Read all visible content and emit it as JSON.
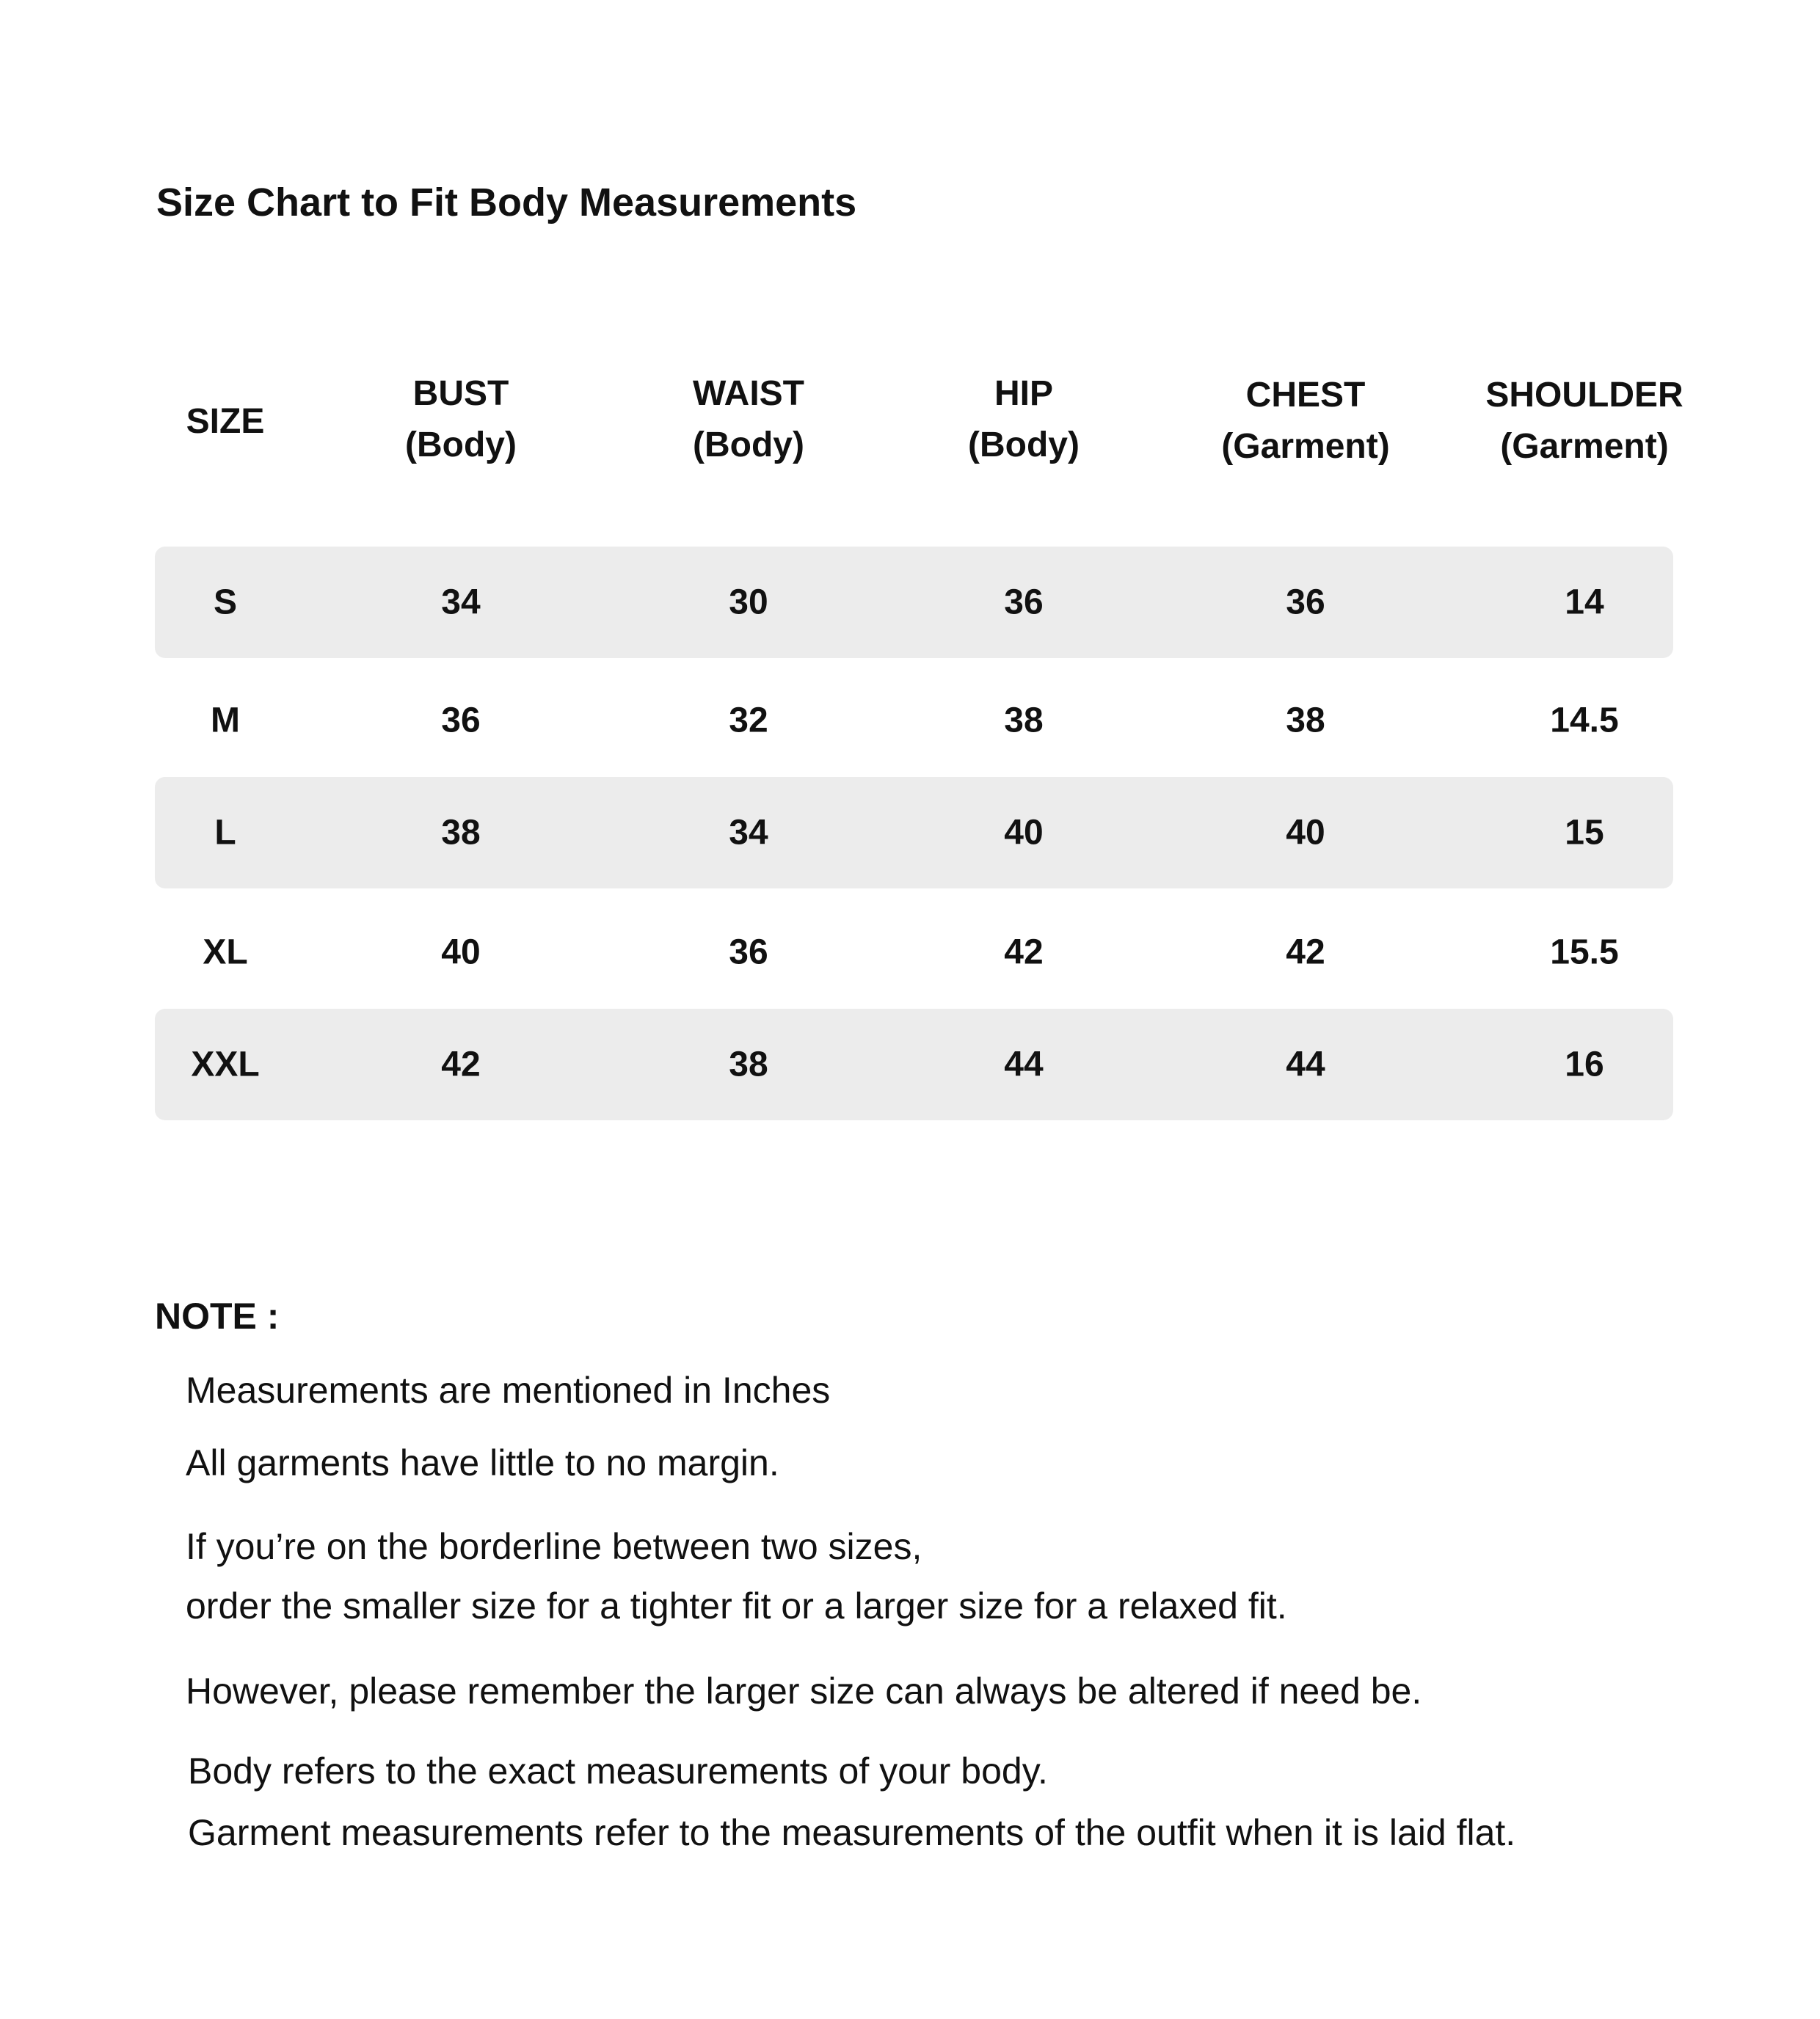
{
  "title": "Size Chart to Fit Body Measurements",
  "table": {
    "headers": [
      {
        "line1": "SIZE",
        "line2": ""
      },
      {
        "line1": "BUST",
        "line2": "(Body)"
      },
      {
        "line1": "WAIST",
        "line2": "(Body)"
      },
      {
        "line1": "HIP",
        "line2": "(Body)"
      },
      {
        "line1": "CHEST",
        "line2": "(Garment)"
      },
      {
        "line1": "SHOULDER",
        "line2": "(Garment)"
      }
    ],
    "rows": [
      [
        "S",
        "34",
        "30",
        "36",
        "36",
        "14"
      ],
      [
        "M",
        "36",
        "32",
        "38",
        "38",
        "14.5"
      ],
      [
        "L",
        "38",
        "34",
        "40",
        "40",
        "15"
      ],
      [
        "XL",
        "40",
        "36",
        "42",
        "42",
        "15.5"
      ],
      [
        "XXL",
        "42",
        "38",
        "44",
        "44",
        "16"
      ]
    ],
    "shade_color": "#ececec"
  },
  "note": {
    "label": "NOTE :",
    "lines": [
      "Measurements are mentioned in Inches",
      "All garments have little to no margin.",
      "If you’re on the borderline between two sizes,",
      "order the smaller size for a tighter fit or a larger size for a relaxed fit.",
      "However, please remember the larger size can always be altered if need be.",
      "Body refers to the exact measurements of your body.",
      "Garment measurements refer to the measurements of the outfit when it is laid flat."
    ]
  }
}
